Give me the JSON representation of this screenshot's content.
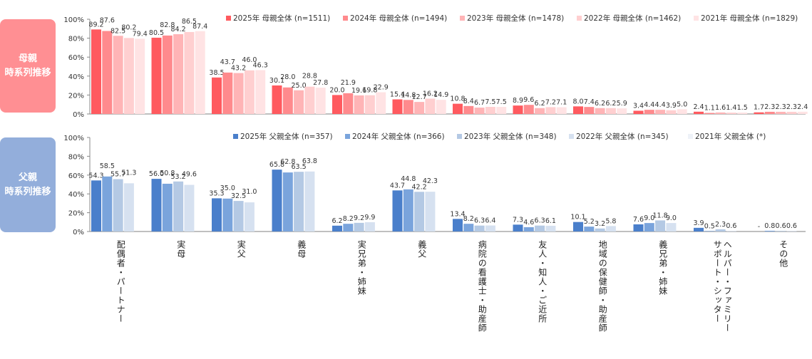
{
  "mother_panel": {
    "line1": "母親",
    "line2": "時系列推移"
  },
  "father_panel": {
    "line1": "父親",
    "line2": "時系列推移"
  },
  "categories": [
    [
      "配偶者・パートナー"
    ],
    [
      "実母"
    ],
    [
      "実父"
    ],
    [
      "義母"
    ],
    [
      "実兄弟・姉妹"
    ],
    [
      "義父"
    ],
    [
      "病院の看護士・助産師"
    ],
    [
      "友人・知人・ご近所"
    ],
    [
      "地域の保健師・助産師"
    ],
    [
      "義兄弟・姉妹"
    ],
    [
      "ヘルパー・ファミリー",
      "サポート・シッター"
    ],
    [
      "その他"
    ]
  ],
  "chart_data": [
    {
      "type": "bar",
      "title": "母親 時系列推移",
      "xlabel": "",
      "ylabel": "",
      "ylim": [
        0,
        100
      ],
      "yticks": [
        "0%",
        "20%",
        "40%",
        "60%",
        "80%",
        "100%"
      ],
      "legend_position": "top",
      "categories": [
        "配偶者・パートナー",
        "実母",
        "実父",
        "義母",
        "実兄弟・姉妹",
        "義父",
        "病院の看護士・助産師",
        "友人・知人・ご近所",
        "地域の保健師・助産師",
        "義兄弟・姉妹",
        "ヘルパー・ファミリーサポート・シッター",
        "その他"
      ],
      "series": [
        {
          "name": "2025年 母親全体 (n=1511)",
          "color": "#ff5a5f",
          "values": [
            89.2,
            80.5,
            38.5,
            30.1,
            20.0,
            15.4,
            10.8,
            8.9,
            8.0,
            3.4,
            2.4,
            1.7
          ]
        },
        {
          "name": "2024年 母親全体 (n=1494)",
          "color": "#ff8a8d",
          "values": [
            87.6,
            82.8,
            43.7,
            28.0,
            21.9,
            14.8,
            8.4,
            9.6,
            7.4,
            4.4,
            1.1,
            2.3
          ]
        },
        {
          "name": "2023年 母親全体 (n=1478)",
          "color": "#ffb4b6",
          "values": [
            82.5,
            84.2,
            43.2,
            25.0,
            19.6,
            12.7,
            6.7,
            6.2,
            6.2,
            4.4,
            1.6,
            2.3
          ]
        },
        {
          "name": "2022年 母親全体 (n=1462)",
          "color": "#ffcfd0",
          "values": [
            80.2,
            86.5,
            46.0,
            28.8,
            19.8,
            16.2,
            7.5,
            7.2,
            6.2,
            3.9,
            1.4,
            2.3
          ]
        },
        {
          "name": "2021年 母親全体 (n=1829)",
          "color": "#ffe3e4",
          "values": [
            79.4,
            87.4,
            46.3,
            27.8,
            22.9,
            14.9,
            7.5,
            7.1,
            5.9,
            5.0,
            1.5,
            2.4
          ]
        }
      ]
    },
    {
      "type": "bar",
      "title": "父親 時系列推移",
      "xlabel": "",
      "ylabel": "",
      "ylim": [
        0,
        100
      ],
      "yticks": [
        "0%",
        "20%",
        "40%",
        "60%",
        "80%",
        "100%"
      ],
      "legend_position": "top",
      "categories": [
        "配偶者・パートナー",
        "実母",
        "実父",
        "義母",
        "実兄弟・姉妹",
        "義父",
        "病院の看護士・助産師",
        "友人・知人・ご近所",
        "地域の保健師・助産師",
        "義兄弟・姉妹",
        "ヘルパー・ファミリーサポート・シッター",
        "その他"
      ],
      "series": [
        {
          "name": "2025年 父親全体 (n=357)",
          "color": "#4a7fcb",
          "values": [
            54.3,
            56.0,
            35.3,
            65.8,
            6.2,
            43.7,
            13.4,
            7.3,
            10.1,
            7.6,
            3.9,
            null
          ],
          "labels": [
            "54.3",
            "56.0",
            "35.3",
            "65.8",
            "6.2",
            "43.7",
            "13.4",
            "7.3",
            "10.1",
            "7.6",
            "3.9",
            "-"
          ]
        },
        {
          "name": "2024年 父親全体 (n=366)",
          "color": "#7aa4dc",
          "values": [
            58.5,
            50.8,
            35.0,
            62.8,
            8.2,
            44.8,
            8.2,
            4.6,
            5.2,
            9.0,
            0.5,
            0.8
          ]
        },
        {
          "name": "2023年 父親全体 (n=348)",
          "color": "#b4c9e4",
          "values": [
            55.7,
            53.2,
            32.5,
            63.5,
            9.2,
            42.2,
            6.3,
            6.3,
            3.2,
            11.8,
            2.3,
            0.6
          ]
        },
        {
          "name": "2022年 父親全体 (n=345)",
          "color": "#d6e1f0",
          "values": [
            51.3,
            49.6,
            31.0,
            63.8,
            9.9,
            42.3,
            6.4,
            6.1,
            5.8,
            9.0,
            0.6,
            0.6
          ]
        },
        {
          "name": "2021年 父親全体 (*)",
          "color": "#eef2f8",
          "values": []
        }
      ]
    }
  ]
}
